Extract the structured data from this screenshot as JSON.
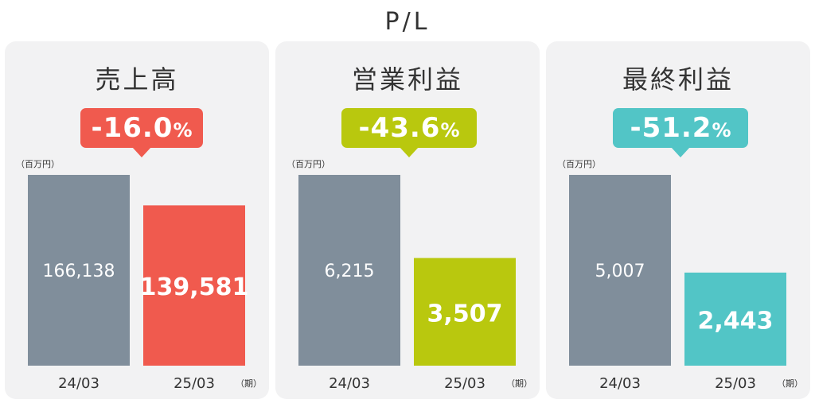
{
  "page_title": "P/L",
  "panels": [
    {
      "title": "売上高",
      "change_number": "-16.0",
      "change_suffix": "%",
      "unit": "（百万円）",
      "period_unit": "（期）",
      "accent": "#f05a4e"
    },
    {
      "title": "営業利益",
      "change_number": "-43.6",
      "change_suffix": "%",
      "unit": "（百万円）",
      "period_unit": "（期）",
      "accent": "#b9c80e"
    },
    {
      "title": "最終利益",
      "change_number": "-51.2",
      "change_suffix": "%",
      "unit": "（百万円）",
      "period_unit": "（期）",
      "accent": "#52c5c6"
    }
  ],
  "chart_data": [
    {
      "type": "bar",
      "title": "売上高",
      "categories": [
        "24/03",
        "25/03"
      ],
      "values": [
        166138,
        139581
      ],
      "value_labels": [
        "166,138",
        "139,581"
      ],
      "ylabel": "（百万円）",
      "xlabel": "（期）",
      "colors": [
        "#808e9b",
        "#f05a4e"
      ]
    },
    {
      "type": "bar",
      "title": "営業利益",
      "categories": [
        "24/03",
        "25/03"
      ],
      "values": [
        6215,
        3507
      ],
      "value_labels": [
        "6,215",
        "3,507"
      ],
      "ylabel": "（百万円）",
      "xlabel": "（期）",
      "colors": [
        "#808e9b",
        "#b9c80e"
      ]
    },
    {
      "type": "bar",
      "title": "最終利益",
      "categories": [
        "24/03",
        "25/03"
      ],
      "values": [
        5007,
        2443
      ],
      "value_labels": [
        "5,007",
        "2,443"
      ],
      "ylabel": "（百万円）",
      "xlabel": "（期）",
      "colors": [
        "#808e9b",
        "#52c5c6"
      ]
    }
  ]
}
